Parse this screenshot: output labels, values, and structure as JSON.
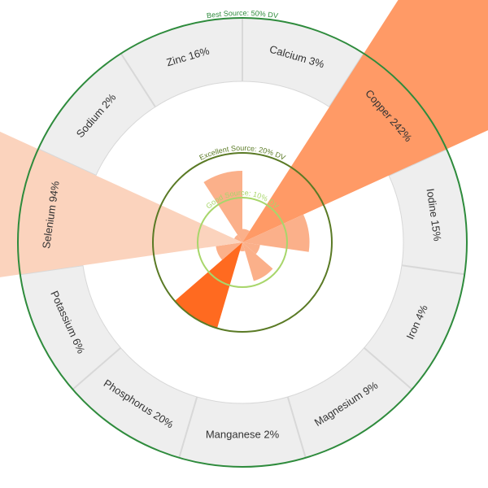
{
  "chart_data": {
    "type": "radial-bar",
    "unit": "% DV",
    "rings": [
      {
        "label": "Best Source: 50% DV",
        "value": 50,
        "color": "#2e8b3c"
      },
      {
        "label": "Excellent Source: 20% DV",
        "value": 20,
        "color": "#5a7a25"
      },
      {
        "label": "Good Source: 10% DV",
        "value": 10,
        "color": "#a8d66b"
      }
    ],
    "nutrients": [
      {
        "name": "Calcium",
        "value": 3,
        "label": "Calcium 3%"
      },
      {
        "name": "Copper",
        "value": 242,
        "label": "Copper 242%"
      },
      {
        "name": "Iodine",
        "value": 15,
        "label": "Iodine 15%"
      },
      {
        "name": "Iron",
        "value": 4,
        "label": "Iron 4%"
      },
      {
        "name": "Magnesium",
        "value": 9,
        "label": "Magnesium 9%"
      },
      {
        "name": "Manganese",
        "value": 2,
        "label": "Manganese 2%"
      },
      {
        "name": "Phosphorus",
        "value": 20,
        "label": "Phosphorus 20%"
      },
      {
        "name": "Potassium",
        "value": 6,
        "label": "Potassium 6%"
      },
      {
        "name": "Selenium",
        "value": 94,
        "label": "Selenium 94%"
      },
      {
        "name": "Sodium",
        "value": 2,
        "label": "Sodium 2%"
      },
      {
        "name": "Zinc",
        "value": 16,
        "label": "Zinc 16%"
      }
    ],
    "colors": {
      "bar_low": "#fbd3bd",
      "bar_mid": "#fbb08a",
      "bar_high": "#ff9a66",
      "bar_top": "#ff6a20",
      "segment_bg": "#eeeeee",
      "segment_border": "#d8d8d8"
    }
  }
}
